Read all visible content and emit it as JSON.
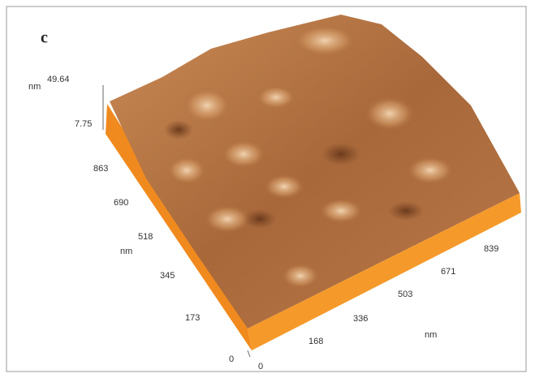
{
  "panel_label": "c",
  "z_axis": {
    "unit": "nm",
    "max": "49.64",
    "min": "7.75"
  },
  "y_axis": {
    "unit": "nm",
    "ticks": [
      "863",
      "690",
      "518",
      "345",
      "173",
      "0"
    ]
  },
  "x_axis": {
    "unit": "nm",
    "ticks": [
      "0",
      "168",
      "336",
      "503",
      "671",
      "839"
    ]
  }
}
